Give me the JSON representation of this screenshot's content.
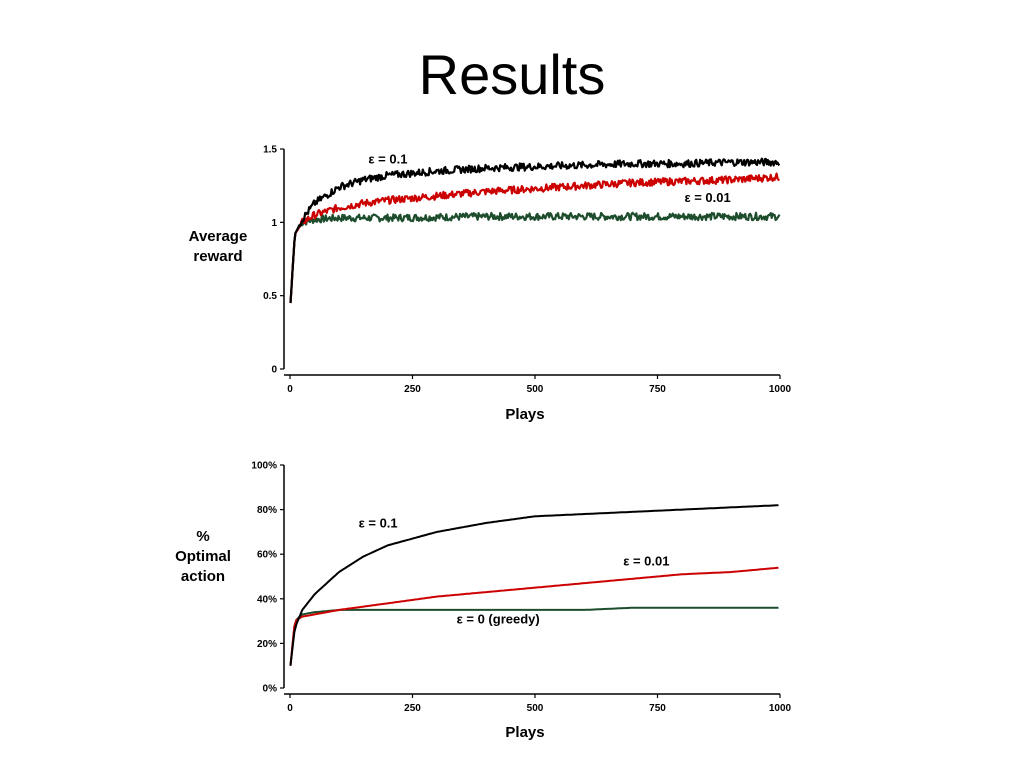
{
  "slide": {
    "title": "Results"
  },
  "colors": {
    "eps_0_1": "#000000",
    "eps_0_01": "#cc0000",
    "eps_0": "#1d4d2c",
    "axis": "#000000"
  },
  "chart_data": [
    {
      "type": "line",
      "xlabel": "Plays",
      "ylabel": [
        "Average",
        "reward"
      ],
      "xlim": [
        0,
        1000
      ],
      "ylim": [
        0,
        1.5
      ],
      "xticks": [
        "0",
        "250",
        "500",
        "750",
        "1000"
      ],
      "yticks": [
        "0",
        "0.5",
        "1",
        "1.5"
      ],
      "noisy": true,
      "series": [
        {
          "name": "ε = 0.1",
          "color": "#000000",
          "x": [
            1,
            10,
            25,
            50,
            100,
            150,
            200,
            300,
            400,
            500,
            600,
            700,
            800,
            900,
            1000
          ],
          "y": [
            0.45,
            0.92,
            1.02,
            1.13,
            1.24,
            1.29,
            1.32,
            1.35,
            1.37,
            1.38,
            1.39,
            1.4,
            1.4,
            1.41,
            1.41
          ],
          "label_x": 160,
          "label_y": 1.4
        },
        {
          "name": "ε = 0.01",
          "color": "#cc0000",
          "x": [
            1,
            10,
            25,
            50,
            100,
            150,
            200,
            300,
            400,
            500,
            600,
            700,
            800,
            900,
            1000
          ],
          "y": [
            0.45,
            0.92,
            1.0,
            1.05,
            1.1,
            1.13,
            1.15,
            1.18,
            1.21,
            1.23,
            1.25,
            1.27,
            1.28,
            1.29,
            1.31
          ],
          "label_x": 805,
          "label_y": 1.14
        },
        {
          "name": "",
          "color": "#1d4d2c",
          "x": [
            1,
            10,
            25,
            50,
            100,
            200,
            400,
            600,
            800,
            1000
          ],
          "y": [
            0.45,
            0.92,
            1.0,
            1.02,
            1.03,
            1.03,
            1.04,
            1.04,
            1.04,
            1.04
          ]
        }
      ]
    },
    {
      "type": "line",
      "xlabel": "Plays",
      "ylabel": [
        "%",
        "Optimal",
        "action"
      ],
      "xlim": [
        0,
        1000
      ],
      "ylim": [
        0,
        100
      ],
      "xticks": [
        "0",
        "250",
        "500",
        "750",
        "1000"
      ],
      "yticks": [
        "0%",
        "20%",
        "40%",
        "60%",
        "80%",
        "100%"
      ],
      "noisy": false,
      "series": [
        {
          "name": "ε = 0.1",
          "color": "#000000",
          "x": [
            1,
            10,
            25,
            50,
            100,
            150,
            200,
            250,
            300,
            400,
            500,
            600,
            700,
            800,
            900,
            1000
          ],
          "y": [
            10,
            27,
            35,
            42,
            52,
            59,
            64,
            67,
            70,
            74,
            77,
            78,
            79,
            80,
            81,
            82
          ],
          "label_x": 140,
          "label_y": 72
        },
        {
          "name": "ε = 0.01",
          "color": "#cc0000",
          "x": [
            1,
            10,
            25,
            50,
            100,
            200,
            300,
            400,
            500,
            600,
            700,
            800,
            900,
            1000
          ],
          "y": [
            10,
            30,
            32,
            33,
            35,
            38,
            41,
            43,
            45,
            47,
            49,
            51,
            52,
            54
          ],
          "label_x": 680,
          "label_y": 55
        },
        {
          "name": "ε = 0 (greedy)",
          "color": "#1d4d2c",
          "x": [
            1,
            10,
            25,
            50,
            100,
            200,
            300,
            400,
            500,
            600,
            700,
            800,
            900,
            1000
          ],
          "y": [
            10,
            30,
            33,
            34,
            35,
            35,
            35,
            35,
            35,
            35,
            36,
            36,
            36,
            36
          ],
          "label_x": 340,
          "label_y": 29
        }
      ]
    }
  ]
}
